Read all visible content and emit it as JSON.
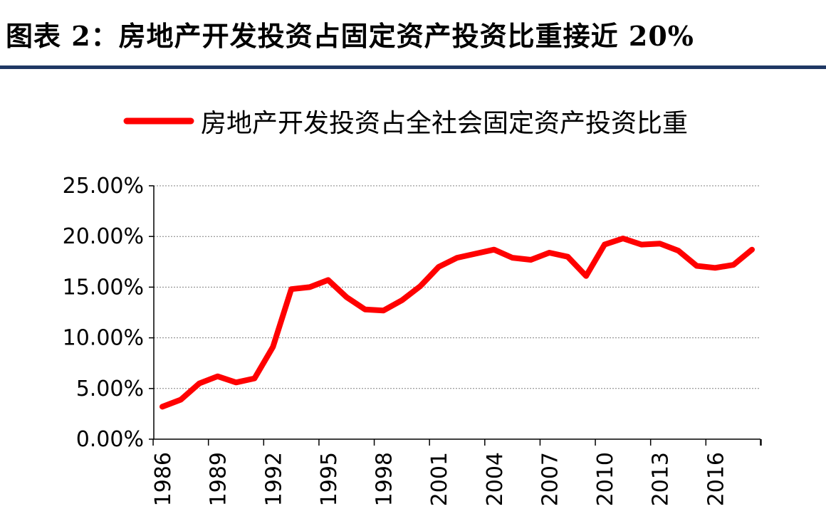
{
  "header": {
    "title": "图表 2：房地产开发投资占固定资产投资比重接近 20%"
  },
  "colors": {
    "series": "#ff0000",
    "rule": "#1f3864",
    "grid": "#808080",
    "axis": "#000000"
  },
  "chart_data": {
    "type": "line",
    "title": "",
    "xlabel": "",
    "ylabel": "",
    "ylim": [
      0,
      25
    ],
    "yticks": [
      "0.00%",
      "5.00%",
      "10.00%",
      "15.00%",
      "20.00%",
      "25.00%"
    ],
    "ytick_values": [
      0,
      5,
      10,
      15,
      20,
      25
    ],
    "xtick_labels": [
      "1986",
      "1989",
      "1992",
      "1995",
      "1998",
      "2001",
      "2004",
      "2007",
      "2010",
      "2013",
      "2016"
    ],
    "grid": true,
    "legend": "top-center",
    "x": [
      1986,
      1987,
      1988,
      1989,
      1990,
      1991,
      1992,
      1993,
      1994,
      1995,
      1996,
      1997,
      1998,
      1999,
      2000,
      2001,
      2002,
      2003,
      2004,
      2005,
      2006,
      2007,
      2008,
      2009,
      2010,
      2011,
      2012,
      2013,
      2014,
      2015,
      2016,
      2017,
      2018
    ],
    "series": [
      {
        "name": "房地产开发投资占全社会固定资产投资比重",
        "values": [
          3.2,
          3.9,
          5.5,
          6.2,
          5.6,
          6.0,
          9.1,
          14.8,
          15.0,
          15.7,
          14.0,
          12.8,
          12.7,
          13.7,
          15.1,
          17.0,
          17.9,
          18.3,
          18.7,
          17.9,
          17.7,
          18.4,
          18.0,
          16.1,
          19.2,
          19.8,
          19.2,
          19.3,
          18.6,
          17.1,
          16.9,
          17.2,
          18.7
        ]
      }
    ]
  }
}
